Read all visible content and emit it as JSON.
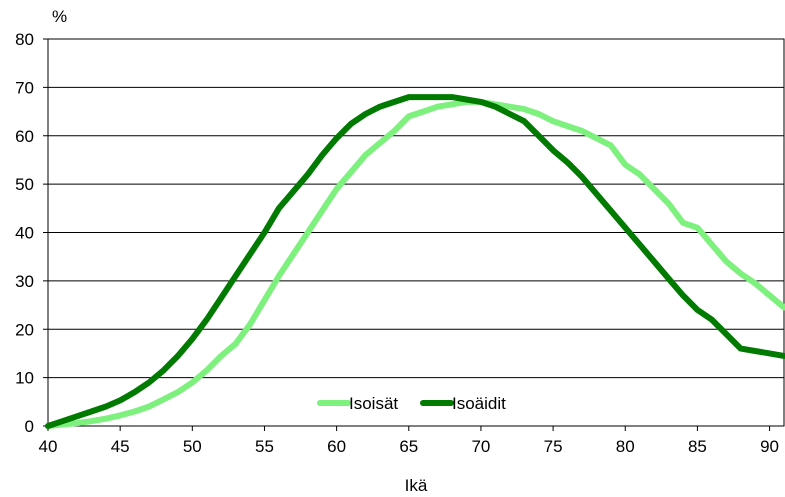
{
  "chart_data": {
    "type": "line",
    "xlabel": "Ikä",
    "ylabel": "%",
    "xlim": [
      40,
      91
    ],
    "ylim": [
      0,
      80
    ],
    "x_ticks": [
      40,
      45,
      50,
      55,
      60,
      65,
      70,
      75,
      80,
      85,
      90
    ],
    "y_ticks": [
      0,
      10,
      20,
      30,
      40,
      50,
      60,
      70,
      80
    ],
    "grid": "horizontal",
    "legend_position": "bottom-center",
    "x": [
      40,
      41,
      42,
      43,
      44,
      45,
      46,
      47,
      48,
      49,
      50,
      51,
      52,
      53,
      54,
      55,
      56,
      57,
      58,
      59,
      60,
      61,
      62,
      63,
      64,
      65,
      66,
      67,
      68,
      69,
      70,
      71,
      72,
      73,
      74,
      75,
      76,
      77,
      78,
      79,
      80,
      81,
      82,
      83,
      84,
      85,
      86,
      87,
      88,
      89,
      90,
      91
    ],
    "series": [
      {
        "name": "Isoisät",
        "color": "#7df07d",
        "values": [
          0,
          0.3,
          0.6,
          1,
          1.5,
          2.2,
          3,
          4,
          5.5,
          7,
          9,
          11.5,
          14.5,
          17,
          21,
          26,
          31,
          35.5,
          40,
          44.5,
          49,
          52.5,
          56,
          58.5,
          61,
          64,
          65,
          66,
          66.5,
          67,
          67,
          66.5,
          66,
          65.5,
          64.5,
          63,
          62,
          61,
          59.5,
          58,
          54,
          52,
          49,
          46,
          42,
          41,
          37.5,
          34,
          31.5,
          29.5,
          27,
          24.5
        ]
      },
      {
        "name": "Isoäidit",
        "color": "#007a00",
        "values": [
          0,
          1,
          2,
          3,
          4,
          5.3,
          7,
          9,
          11.5,
          14.5,
          18,
          22,
          26.5,
          31,
          35.5,
          40,
          45,
          48.5,
          52,
          56,
          59.5,
          62.5,
          64.5,
          66,
          67,
          68,
          68,
          68,
          68,
          67.5,
          67,
          66,
          64.5,
          63,
          60,
          57,
          54.5,
          51.5,
          48,
          44.5,
          41,
          37.5,
          34,
          30.5,
          27,
          24,
          22,
          19,
          16,
          15.5,
          15,
          14.5
        ]
      }
    ]
  }
}
